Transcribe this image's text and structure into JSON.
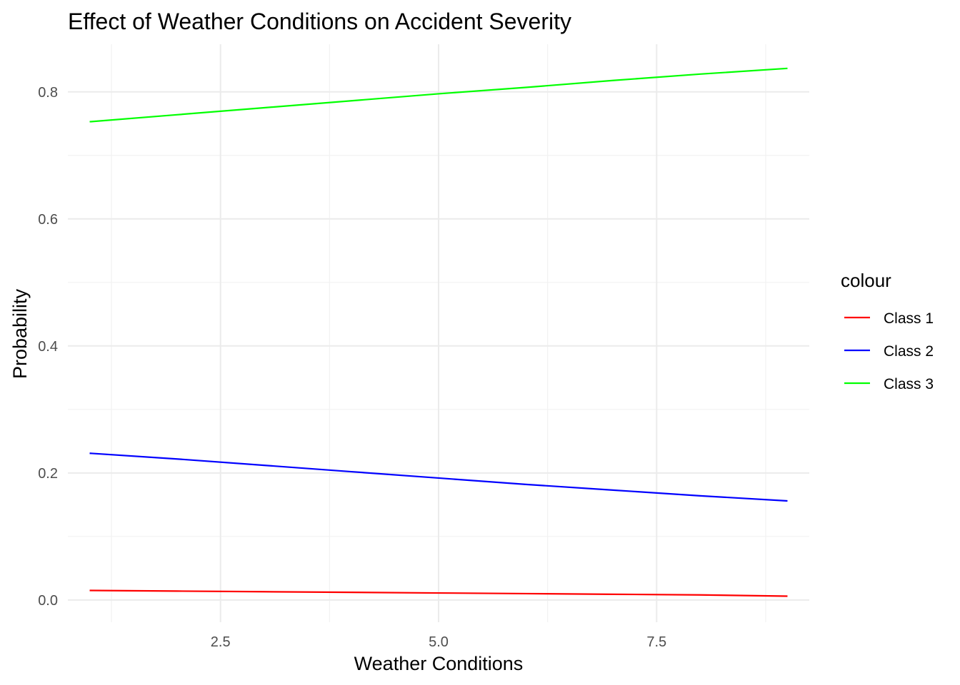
{
  "chart_data": {
    "type": "line",
    "title": "Effect of Weather Conditions on Accident Severity",
    "xlabel": "Weather Conditions",
    "ylabel": "Probability",
    "xlim": [
      0.75,
      9.25
    ],
    "ylim": [
      -0.035,
      0.875
    ],
    "x_ticks": [
      2.5,
      5.0,
      7.5
    ],
    "x_tick_labels": [
      "2.5",
      "5.0",
      "7.5"
    ],
    "x_minor_ticks": [
      1.25,
      3.75,
      6.25,
      8.75
    ],
    "y_ticks": [
      0.0,
      0.2,
      0.4,
      0.6,
      0.8
    ],
    "y_tick_labels": [
      "0.0",
      "0.2",
      "0.4",
      "0.6",
      "0.8"
    ],
    "y_minor_ticks": [
      0.1,
      0.3,
      0.5,
      0.7
    ],
    "grid": true,
    "legend": {
      "title": "colour",
      "position": "right"
    },
    "x": [
      1,
      2,
      3,
      4,
      5,
      6,
      7,
      8,
      9
    ],
    "series": [
      {
        "name": "Class 1",
        "color": "#ff0000",
        "values": [
          0.015,
          0.014,
          0.013,
          0.012,
          0.011,
          0.01,
          0.009,
          0.008,
          0.006
        ]
      },
      {
        "name": "Class 2",
        "color": "#0000ff",
        "values": [
          0.231,
          0.222,
          0.212,
          0.202,
          0.192,
          0.182,
          0.173,
          0.164,
          0.156
        ]
      },
      {
        "name": "Class 3",
        "color": "#00ff00",
        "values": [
          0.753,
          0.764,
          0.775,
          0.786,
          0.797,
          0.807,
          0.818,
          0.828,
          0.837
        ]
      }
    ]
  }
}
